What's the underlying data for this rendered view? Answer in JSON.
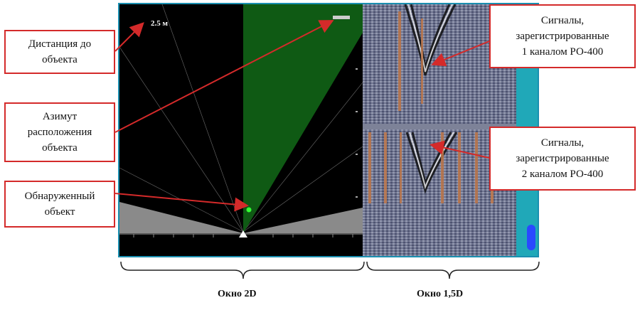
{
  "callouts": {
    "distance": "Дистанция до\nобъекта",
    "azimuth": "Азимут\nрасположения\nобъекта",
    "detected": "Обнаруженный\nобъект",
    "signals_ch1": "Сигналы,\nзарегистрированные\n1 каналом РО-400",
    "signals_ch2": "Сигналы,\nзарегистрированные\n2 каналом РО-400"
  },
  "distance_readout": "2.5 м",
  "windows": {
    "left_label": "Окно 2D",
    "right_label": "Окно 1,5D"
  },
  "colors": {
    "callout_border": "#d42a2a",
    "arrow": "#d42a2a",
    "sector": "#0f5a14",
    "frame": "#1a8fb0",
    "sidebar": "#20a8b8",
    "target": "#33ff33"
  }
}
